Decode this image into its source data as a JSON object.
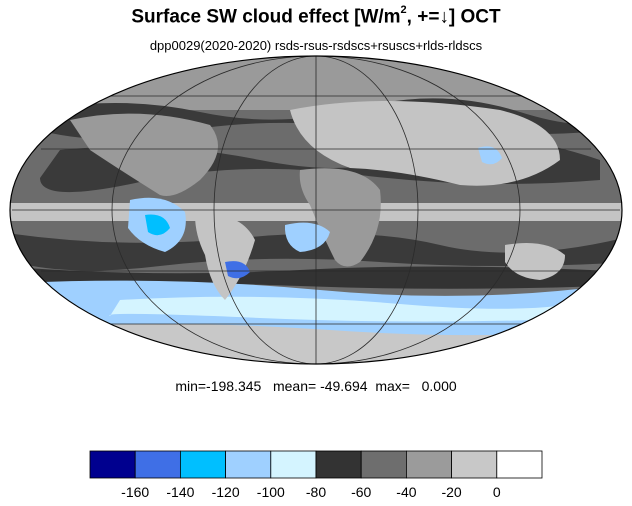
{
  "header": {
    "title_main": "Surface SW cloud effect [W/m",
    "title_sup": "2",
    "title_rest": ", +=↓]  OCT",
    "subtitle": "dpp0029(2020-2020)  rsds-rsus-rsdscs+rsuscs+rlds-rldscs"
  },
  "stats": {
    "text": "min=-198.345   mean= -49.694  max=   0.000"
  },
  "map": {
    "projection": "mollweide",
    "ocean_colors": [
      "#3a3a3a",
      "#6c6c6c",
      "#9a9a9a",
      "#c4c4c4"
    ],
    "land_color": "#c8c8c8",
    "grid_color": "#2a2a2a"
  },
  "legend": {
    "colors": [
      "#00008f",
      "#3f6fe6",
      "#00bfff",
      "#9fd0ff",
      "#d4f4ff",
      "#333333",
      "#6e6e6e",
      "#9b9b9b",
      "#c8c8c8",
      "#ffffff"
    ],
    "tick_labels": [
      "-160",
      "-140",
      "-120",
      "-100",
      "-80",
      "-60",
      "-40",
      "-20",
      "0"
    ]
  }
}
